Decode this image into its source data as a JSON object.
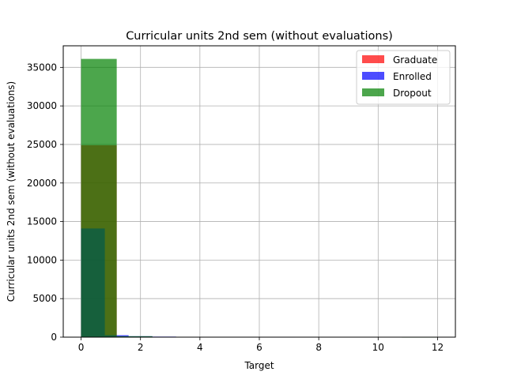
{
  "chart_data": {
    "type": "bar",
    "title": "Curricular units 2nd sem (without evaluations)",
    "xlabel": "Target",
    "ylabel": "Curricular units 2nd sem (without evaluations)",
    "xlim": [
      -0.6,
      12.6
    ],
    "ylim": [
      0,
      37800
    ],
    "xticks": [
      0,
      2,
      4,
      6,
      8,
      10,
      12
    ],
    "yticks": [
      0,
      5000,
      10000,
      15000,
      20000,
      25000,
      30000,
      35000
    ],
    "grid": true,
    "legend_position": "top-right",
    "series": [
      {
        "name": "Graduate",
        "color": "#ff0000",
        "opacity": 0.7,
        "bins": [
          {
            "x0": 0.0,
            "x1": 1.2,
            "value": 24900
          },
          {
            "x0": 1.2,
            "x1": 2.4,
            "value": 40
          },
          {
            "x0": 2.4,
            "x1": 3.6,
            "value": 30
          },
          {
            "x0": 4.8,
            "x1": 6.0,
            "value": 20
          },
          {
            "x0": 6.0,
            "x1": 7.2,
            "value": 20
          }
        ]
      },
      {
        "name": "Enrolled",
        "color": "#0000ff",
        "opacity": 0.7,
        "bins": [
          {
            "x0": 0.0,
            "x1": 0.8,
            "value": 14100
          },
          {
            "x0": 0.8,
            "x1": 1.6,
            "value": 250
          },
          {
            "x0": 1.6,
            "x1": 2.4,
            "value": 120
          },
          {
            "x0": 2.4,
            "x1": 3.2,
            "value": 70
          },
          {
            "x0": 3.2,
            "x1": 4.0,
            "value": 20
          },
          {
            "x0": 6.4,
            "x1": 7.2,
            "value": 10
          }
        ]
      },
      {
        "name": "Dropout",
        "color": "#008000",
        "opacity": 0.7,
        "bins": [
          {
            "x0": 0.0,
            "x1": 1.2,
            "value": 36100
          },
          {
            "x0": 1.2,
            "x1": 2.4,
            "value": 120
          },
          {
            "x0": 2.4,
            "x1": 3.6,
            "value": 40
          },
          {
            "x0": 4.8,
            "x1": 6.0,
            "value": 15
          },
          {
            "x0": 10.8,
            "x1": 12.0,
            "value": 5
          }
        ]
      }
    ]
  }
}
